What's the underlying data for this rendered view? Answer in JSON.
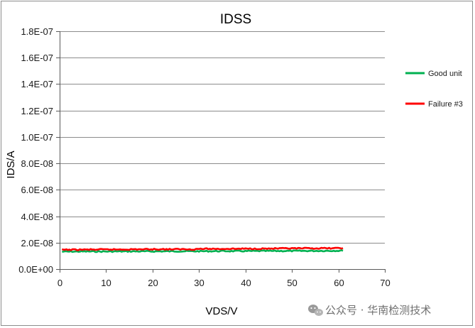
{
  "chart_data": {
    "type": "line",
    "title": "IDSS",
    "xlabel": "VDS/V",
    "ylabel": "IDS/A",
    "xlim": [
      0,
      70
    ],
    "ylim": [
      0,
      1.8e-07
    ],
    "x_ticks": [
      0,
      10,
      20,
      30,
      40,
      50,
      60,
      70
    ],
    "x_tick_labels": [
      "0",
      "10",
      "20",
      "30",
      "40",
      "50",
      "60",
      "70"
    ],
    "y_ticks": [
      0,
      2e-08,
      4e-08,
      6e-08,
      8e-08,
      1e-07,
      1.2e-07,
      1.4e-07,
      1.6e-07,
      1.8e-07
    ],
    "y_tick_labels": [
      "0.0E+00",
      "2.0E-08",
      "4.0E-08",
      "6.0E-08",
      "8.0E-08",
      "1.0E-07",
      "1.2E-07",
      "1.4E-07",
      "1.6E-07",
      "1.8E-07"
    ],
    "grid": "horizontal",
    "legend_position": "right",
    "series": [
      {
        "name": "Good unit",
        "color": "#00b050",
        "x": [
          0.5,
          5,
          10,
          15,
          20,
          25,
          30,
          35,
          40,
          45,
          50,
          55,
          60,
          61
        ],
        "y": [
          1.32e-08,
          1.33e-08,
          1.33e-08,
          1.34e-08,
          1.34e-08,
          1.35e-08,
          1.35e-08,
          1.36e-08,
          1.36e-08,
          1.37e-08,
          1.37e-08,
          1.38e-08,
          1.39e-08,
          1.39e-08
        ]
      },
      {
        "name": "Failure #3",
        "color": "#ff0000",
        "x": [
          0.5,
          5,
          10,
          15,
          20,
          25,
          29,
          30,
          35,
          40,
          45,
          50,
          55,
          60,
          61
        ],
        "y": [
          1.46e-08,
          1.47e-08,
          1.48e-08,
          1.49e-08,
          1.5e-08,
          1.5e-08,
          1.5e-08,
          1.53e-08,
          1.53e-08,
          1.54e-08,
          1.55e-08,
          1.56e-08,
          1.57e-08,
          1.58e-08,
          1.58e-08
        ]
      }
    ]
  },
  "watermark": {
    "text": "公众号 · 华南检测技术",
    "icon": "wechat-icon"
  }
}
